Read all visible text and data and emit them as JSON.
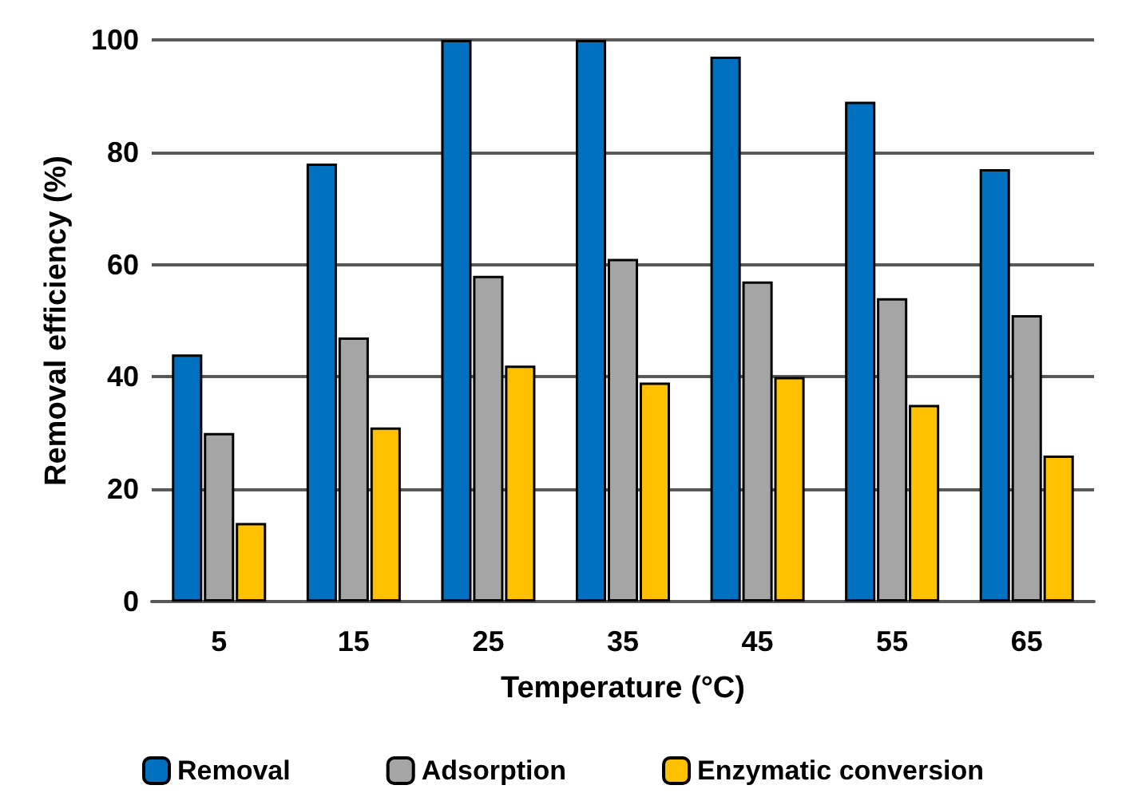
{
  "chart_data": {
    "type": "bar",
    "xlabel": "Temperature (°C)",
    "ylabel": "Removal efficiency (%)",
    "categories": [
      "5",
      "15",
      "25",
      "35",
      "45",
      "55",
      "65"
    ],
    "series": [
      {
        "name": "Removal",
        "color": "#0070c0",
        "values": [
          44,
          78,
          100,
          100,
          97,
          89,
          77
        ]
      },
      {
        "name": "Adsorption",
        "color": "#a5a5a5",
        "values": [
          30,
          47,
          58,
          61,
          57,
          54,
          51
        ]
      },
      {
        "name": "Enzymatic conversion",
        "color": "#ffc000",
        "values": [
          14,
          31,
          42,
          39,
          40,
          35,
          26
        ]
      }
    ],
    "ylim": [
      0,
      100
    ],
    "yticks": [
      0,
      20,
      40,
      60,
      80,
      100
    ],
    "grid": "y",
    "legend": "bottom"
  }
}
